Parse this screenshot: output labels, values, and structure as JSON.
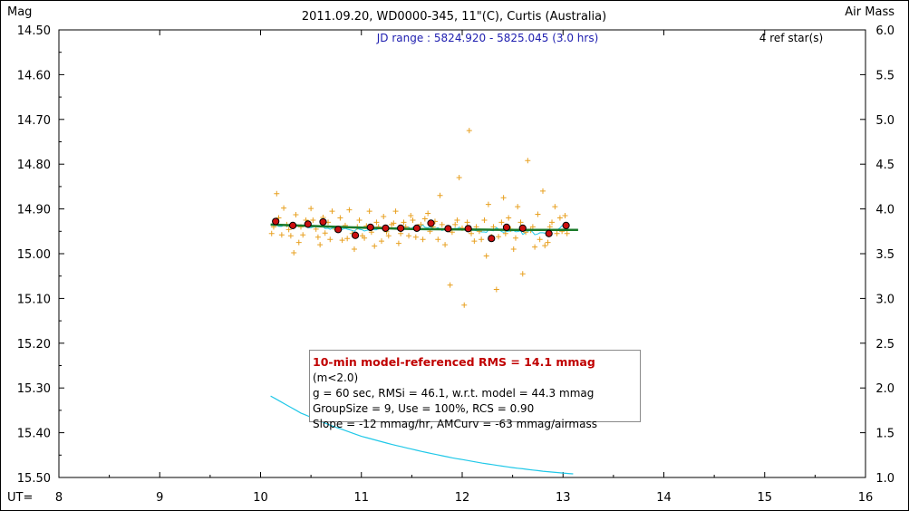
{
  "chart_data": {
    "type": "scatter",
    "title": "2011.09.20, WD0000-345, 11\"(C), Curtis (Australia)",
    "ylabel_left": "Mag",
    "ylabel_right": "Air Mass",
    "xlabel": "UT=",
    "jd_range": "JD range : 5824.920 - 5825.045 (3.0 hrs)",
    "ref_stars": "4 ref star(s)",
    "xlim": [
      8,
      16
    ],
    "ylim_mag": [
      14.5,
      15.5
    ],
    "ylim_airmass": [
      6.0,
      1.0
    ],
    "x_ticks": [
      "8",
      "9",
      "10",
      "11",
      "12",
      "13",
      "14",
      "15",
      "16"
    ],
    "y_ticks_mag": [
      "14.50",
      "14.60",
      "14.70",
      "14.80",
      "14.90",
      "15.00",
      "15.10",
      "15.20",
      "15.30",
      "15.40",
      "15.50"
    ],
    "y_ticks_airmass": [
      "6.0",
      "5.5",
      "5.0",
      "4.5",
      "4.0",
      "3.5",
      "3.0",
      "2.5",
      "2.0",
      "1.5",
      "1.0"
    ],
    "grid": false,
    "colors": {
      "raw_points": "#e8a020",
      "binned_points": "#cc1010",
      "model_line": "#1a7a2a",
      "airmass_line": "#20c8e8",
      "jd_text": "#2020b0",
      "rms_text": "#c00000"
    },
    "series": [
      {
        "kind": "binned",
        "x": [
          10.15,
          10.32,
          10.47,
          10.62,
          10.77,
          10.94,
          11.09,
          11.24,
          11.39,
          11.55,
          11.69,
          11.86,
          12.06,
          12.29,
          12.44,
          12.6,
          12.86,
          13.03
        ],
        "y": [
          14.928,
          14.937,
          14.934,
          14.929,
          14.946,
          14.959,
          14.941,
          14.943,
          14.943,
          14.943,
          14.932,
          14.944,
          14.944,
          14.966,
          14.941,
          14.943,
          14.955,
          14.937
        ]
      },
      {
        "kind": "model",
        "x": [
          10.1,
          10.5,
          11.0,
          11.5,
          12.0,
          12.5,
          13.0,
          13.15
        ],
        "y": [
          14.935,
          14.938,
          14.942,
          14.945,
          14.946,
          14.947,
          14.947,
          14.947
        ]
      },
      {
        "kind": "airmass",
        "x": [
          10.1,
          10.4,
          10.7,
          11.0,
          11.3,
          11.6,
          11.9,
          12.2,
          12.5,
          12.8,
          13.1
        ],
        "y": [
          1.91,
          1.72,
          1.58,
          1.46,
          1.37,
          1.29,
          1.22,
          1.16,
          1.11,
          1.07,
          1.04
        ]
      },
      {
        "kind": "raw",
        "x": [
          10.11,
          10.13,
          10.16,
          10.18,
          10.21,
          10.23,
          10.26,
          10.28,
          10.3,
          10.33,
          10.35,
          10.38,
          10.4,
          10.42,
          10.45,
          10.47,
          10.5,
          10.52,
          10.55,
          10.57,
          10.59,
          10.62,
          10.64,
          10.67,
          10.69,
          10.71,
          10.74,
          10.76,
          10.79,
          10.81,
          10.84,
          10.86,
          10.88,
          10.91,
          10.93,
          10.96,
          10.98,
          11.01,
          11.03,
          11.05,
          11.08,
          11.1,
          11.13,
          11.15,
          11.17,
          11.2,
          11.22,
          11.25,
          11.27,
          11.3,
          11.32,
          11.34,
          11.37,
          11.39,
          11.42,
          11.44,
          11.47,
          11.49,
          11.51,
          11.54,
          11.56,
          11.59,
          11.61,
          11.63,
          11.66,
          11.68,
          11.71,
          11.73,
          11.76,
          11.78,
          11.8,
          11.83,
          11.85,
          11.88,
          11.9,
          11.93,
          11.95,
          11.97,
          12.0,
          12.02,
          12.05,
          12.07,
          12.09,
          12.12,
          12.14,
          12.17,
          12.19,
          12.22,
          12.24,
          12.26,
          12.29,
          12.31,
          12.34,
          12.36,
          12.39,
          12.41,
          12.43,
          12.46,
          12.48,
          12.51,
          12.53,
          12.55,
          12.58,
          12.6,
          12.63,
          12.65,
          12.68,
          12.7,
          12.72,
          12.75,
          12.77,
          12.8,
          12.82,
          12.85,
          12.87,
          12.89,
          12.92,
          12.94,
          12.97,
          12.99,
          13.02,
          13.04
        ],
        "y": [
          14.955,
          14.94,
          14.866,
          14.92,
          14.958,
          14.898,
          14.935,
          14.946,
          14.96,
          14.998,
          14.913,
          14.975,
          14.94,
          14.958,
          14.925,
          14.935,
          14.899,
          14.925,
          14.945,
          14.963,
          14.98,
          14.919,
          14.954,
          14.93,
          14.968,
          14.905,
          14.945,
          14.946,
          14.92,
          14.97,
          14.937,
          14.966,
          14.902,
          14.955,
          14.99,
          14.94,
          14.925,
          14.96,
          14.965,
          14.938,
          14.905,
          14.952,
          14.983,
          14.93,
          14.94,
          14.972,
          14.917,
          14.951,
          14.96,
          14.935,
          14.932,
          14.905,
          14.977,
          14.955,
          14.93,
          14.94,
          14.96,
          14.915,
          14.925,
          14.963,
          14.94,
          14.935,
          14.968,
          14.922,
          14.91,
          14.95,
          14.94,
          14.928,
          14.968,
          14.87,
          14.935,
          14.98,
          14.945,
          15.07,
          14.952,
          14.935,
          14.925,
          14.83,
          14.943,
          15.115,
          14.93,
          14.725,
          14.955,
          14.972,
          14.94,
          14.95,
          14.968,
          14.925,
          15.005,
          14.89,
          14.962,
          14.94,
          15.08,
          14.962,
          14.93,
          14.875,
          14.955,
          14.92,
          14.945,
          14.99,
          14.965,
          14.895,
          14.93,
          15.045,
          14.952,
          14.792,
          14.948,
          14.94,
          14.985,
          14.912,
          14.968,
          14.86,
          14.982,
          14.975,
          14.94,
          14.93,
          14.895,
          14.955,
          14.92,
          14.95,
          14.915,
          14.955
        ]
      }
    ],
    "stats_box": {
      "rms_line": "10-min model-referenced RMS = 14.1 mmag",
      "rms_note": "(m<2.0)",
      "line2": "g = 60 sec, RMSi = 46.1, w.r.t. model = 44.3 mmag",
      "line3": "GroupSize = 9, Use = 100%, RCS = 0.90",
      "line4": "Slope = -12 mmag/hr, AMCurv = -63 mmag/airmass"
    }
  }
}
